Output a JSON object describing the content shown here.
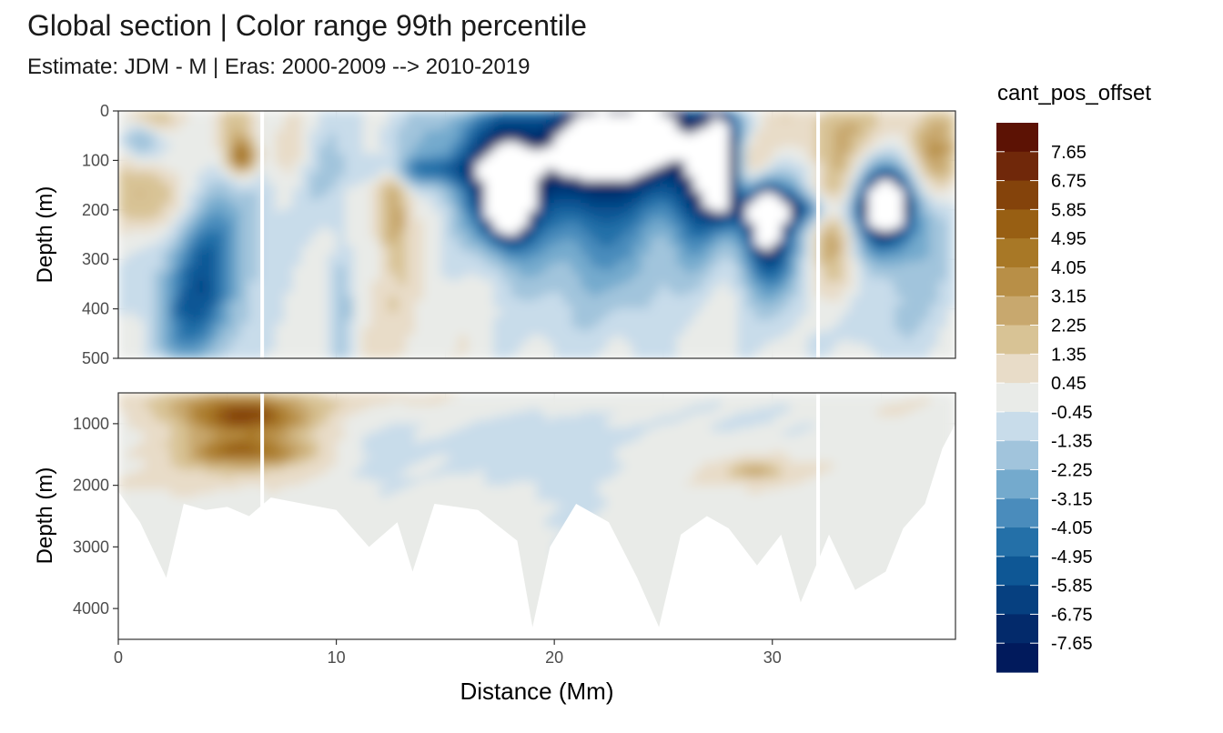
{
  "chart_data": {
    "type": "heatmap",
    "title": "Global section | Color range 99th percentile",
    "subtitle": "Estimate: JDM - M | Eras: 2000-2009 --> 2010-2019",
    "xlabel": "Distance (Mm)",
    "ylabel": "Depth (m)",
    "xlim": [
      0,
      38.4
    ],
    "x_ticks": [
      "0",
      "10",
      "20",
      "30"
    ],
    "grid": true,
    "legend": {
      "title": "cant_pos_offset",
      "placement": "right",
      "labels": [
        "7.65",
        "6.75",
        "5.85",
        "4.95",
        "4.05",
        "3.15",
        "2.25",
        "1.35",
        "0.45",
        "-0.45",
        "-1.35",
        "-2.25",
        "-3.15",
        "-4.05",
        "-4.95",
        "-5.85",
        "-6.75",
        "-7.65"
      ],
      "colors": [
        "#5c1204",
        "#70280a",
        "#84430b",
        "#985f13",
        "#a87826",
        "#b88f47",
        "#c8a86e",
        "#d8c395",
        "#e8dcc8",
        "#e9ebe8",
        "#c8dcea",
        "#a1c4dc",
        "#74aacd",
        "#4a8cbc",
        "#2470a8",
        "#0e5795",
        "#064080",
        "#032a6b",
        "#011a5c"
      ]
    },
    "panels": [
      {
        "name": "upper",
        "ylim": [
          500,
          0
        ],
        "y_ticks": [
          "0",
          "100",
          "200",
          "300",
          "400",
          "500"
        ],
        "gaps_x": [
          6.6,
          32.1
        ],
        "blobs": [
          {
            "x": 4.1,
            "y": 310,
            "rx": 1.4,
            "ry": 120,
            "v": -4.5
          },
          {
            "x": 1.5,
            "y": 175,
            "rx": 1.3,
            "ry": 55,
            "v": 3.0
          },
          {
            "x": 1.0,
            "y": 60,
            "rx": 0.6,
            "ry": 30,
            "v": -3.0
          },
          {
            "x": 1.9,
            "y": 10,
            "rx": 0.9,
            "ry": 25,
            "v": 2.5
          },
          {
            "x": 5.6,
            "y": 40,
            "rx": 0.6,
            "ry": 70,
            "v": 2.5
          },
          {
            "x": 5.7,
            "y": 95,
            "rx": 0.5,
            "ry": 25,
            "v": 4.5
          },
          {
            "x": 3.0,
            "y": 420,
            "rx": 1.2,
            "ry": 80,
            "v": -2.3
          },
          {
            "x": 10.2,
            "y": 380,
            "rx": 0.4,
            "ry": 100,
            "v": -2.0
          },
          {
            "x": 9.3,
            "y": 120,
            "rx": 1.0,
            "ry": 80,
            "v": -1.3
          },
          {
            "x": 12.6,
            "y": 200,
            "rx": 0.5,
            "ry": 60,
            "v": 3.5
          },
          {
            "x": 12.5,
            "y": 130,
            "rx": 0.6,
            "ry": 30,
            "v": 1.6
          },
          {
            "x": 14.0,
            "y": 120,
            "rx": 1.8,
            "ry": 20,
            "v": -3.2
          },
          {
            "x": 12.6,
            "y": 390,
            "rx": 1.2,
            "ry": 110,
            "v": 0.9
          },
          {
            "x": 8.2,
            "y": 80,
            "rx": 0.8,
            "ry": 50,
            "v": 1.2
          },
          {
            "x": 19.5,
            "y": 70,
            "rx": 4.0,
            "ry": 75,
            "v": -5.2
          },
          {
            "x": 17.8,
            "y": 175,
            "rx": 1.3,
            "ry": 85,
            "v": -6.8
          },
          {
            "x": 17.9,
            "y": 195,
            "rx": 0.6,
            "ry": 40,
            "v": -9.0
          },
          {
            "x": 20.0,
            "y": 330,
            "rx": 1.3,
            "ry": 140,
            "v": -1.3
          },
          {
            "x": 22.0,
            "y": 200,
            "rx": 1.2,
            "ry": 120,
            "v": -3.8
          },
          {
            "x": 24.3,
            "y": 40,
            "rx": 2.6,
            "ry": 90,
            "v": -6.5
          },
          {
            "x": 24.0,
            "y": 320,
            "rx": 0.8,
            "ry": 130,
            "v": -1.8
          },
          {
            "x": 26.4,
            "y": 180,
            "rx": 1.0,
            "ry": 110,
            "v": -4.2
          },
          {
            "x": 27.6,
            "y": 100,
            "rx": 0.7,
            "ry": 70,
            "v": -7.0
          },
          {
            "x": 27.65,
            "y": 110,
            "rx": 0.35,
            "ry": 50,
            "v": -9.0
          },
          {
            "x": 29.6,
            "y": 230,
            "rx": 0.9,
            "ry": 80,
            "v": -6.0
          },
          {
            "x": 29.7,
            "y": 215,
            "rx": 0.35,
            "ry": 35,
            "v": -9.0
          },
          {
            "x": 30.5,
            "y": 280,
            "rx": 1.0,
            "ry": 120,
            "v": -2.2
          },
          {
            "x": 29.5,
            "y": 30,
            "rx": 2.2,
            "ry": 60,
            "v": 1.4
          },
          {
            "x": 28.9,
            "y": 110,
            "rx": 0.8,
            "ry": 40,
            "v": 4.0
          },
          {
            "x": 30.6,
            "y": 200,
            "rx": 2.0,
            "ry": 22,
            "v": -4.0
          },
          {
            "x": 33.0,
            "y": 240,
            "rx": 0.8,
            "ry": 120,
            "v": 3.6
          },
          {
            "x": 35.0,
            "y": 200,
            "rx": 1.2,
            "ry": 70,
            "v": -6.8
          },
          {
            "x": 35.3,
            "y": 190,
            "rx": 0.6,
            "ry": 35,
            "v": -9.0
          },
          {
            "x": 34.5,
            "y": 40,
            "rx": 2.5,
            "ry": 60,
            "v": 1.5
          },
          {
            "x": 37.6,
            "y": 100,
            "rx": 0.8,
            "ry": 60,
            "v": 3.0
          },
          {
            "x": 37.0,
            "y": 320,
            "rx": 1.5,
            "ry": 140,
            "v": -1.3
          },
          {
            "x": 34.0,
            "y": 420,
            "rx": 1.2,
            "ry": 60,
            "v": -1.4
          },
          {
            "x": 6.5,
            "y": 180,
            "rx": 0.6,
            "ry": 90,
            "v": -1.2
          }
        ]
      },
      {
        "name": "lower",
        "ylim": [
          4500,
          500
        ],
        "y_ticks": [
          "1000",
          "2000",
          "3000",
          "4000"
        ],
        "gaps_x": [
          6.6,
          32.1
        ],
        "blobs": [
          {
            "x": 5.8,
            "y": 900,
            "rx": 2.0,
            "ry": 180,
            "v": 5.2
          },
          {
            "x": 5.8,
            "y": 1450,
            "rx": 2.0,
            "ry": 180,
            "v": 4.5
          },
          {
            "x": 5.8,
            "y": 1180,
            "rx": 3.0,
            "ry": 600,
            "v": 1.0
          },
          {
            "x": 4.0,
            "y": 650,
            "rx": 2.5,
            "ry": 150,
            "v": 1.0
          },
          {
            "x": 19.0,
            "y": 1400,
            "rx": 3.5,
            "ry": 450,
            "v": -1.0
          },
          {
            "x": 21.0,
            "y": 2700,
            "rx": 1.0,
            "ry": 900,
            "v": -0.7
          },
          {
            "x": 29.0,
            "y": 1750,
            "rx": 3.0,
            "ry": 250,
            "v": 0.9
          },
          {
            "x": 29.3,
            "y": 1780,
            "rx": 0.8,
            "ry": 80,
            "v": 2.3
          },
          {
            "x": 8.0,
            "y": 600,
            "rx": 6.0,
            "ry": 150,
            "v": 1.0
          },
          {
            "x": 12.0,
            "y": 1500,
            "rx": 1.2,
            "ry": 500,
            "v": -0.8
          },
          {
            "x": 2.5,
            "y": 1900,
            "rx": 2.0,
            "ry": 150,
            "v": 0.8
          },
          {
            "x": 31.0,
            "y": 900,
            "rx": 4.0,
            "ry": 300,
            "v": -0.7
          },
          {
            "x": 35.0,
            "y": 800,
            "rx": 3.0,
            "ry": 250,
            "v": 0.8
          },
          {
            "x": 30.0,
            "y": 4280,
            "rx": 0.8,
            "ry": 100,
            "v": 1.0
          },
          {
            "x": 8.0,
            "y": 4400,
            "rx": 2.0,
            "ry": 100,
            "v": 1.0
          }
        ],
        "floor": [
          [
            0,
            2100
          ],
          [
            1.0,
            2600
          ],
          [
            2.2,
            3500
          ],
          [
            3.0,
            2300
          ],
          [
            4.0,
            2400
          ],
          [
            5.0,
            2350
          ],
          [
            6.0,
            2500
          ],
          [
            7.0,
            2200
          ],
          [
            8.5,
            2300
          ],
          [
            10.0,
            2400
          ],
          [
            11.5,
            3000
          ],
          [
            12.8,
            2600
          ],
          [
            13.5,
            3400
          ],
          [
            14.5,
            2300
          ],
          [
            16.5,
            2400
          ],
          [
            18.3,
            2900
          ],
          [
            19.0,
            4300
          ],
          [
            19.8,
            3000
          ],
          [
            21.0,
            2300
          ],
          [
            22.5,
            2600
          ],
          [
            23.8,
            3500
          ],
          [
            24.8,
            4300
          ],
          [
            25.8,
            2800
          ],
          [
            27.0,
            2500
          ],
          [
            28.0,
            2700
          ],
          [
            29.3,
            3300
          ],
          [
            30.4,
            2800
          ],
          [
            31.3,
            3900
          ],
          [
            32.6,
            2800
          ],
          [
            33.8,
            3700
          ],
          [
            35.2,
            3400
          ],
          [
            36.0,
            2700
          ],
          [
            37.0,
            2300
          ],
          [
            37.8,
            1400
          ],
          [
            38.4,
            1000
          ]
        ]
      }
    ]
  }
}
